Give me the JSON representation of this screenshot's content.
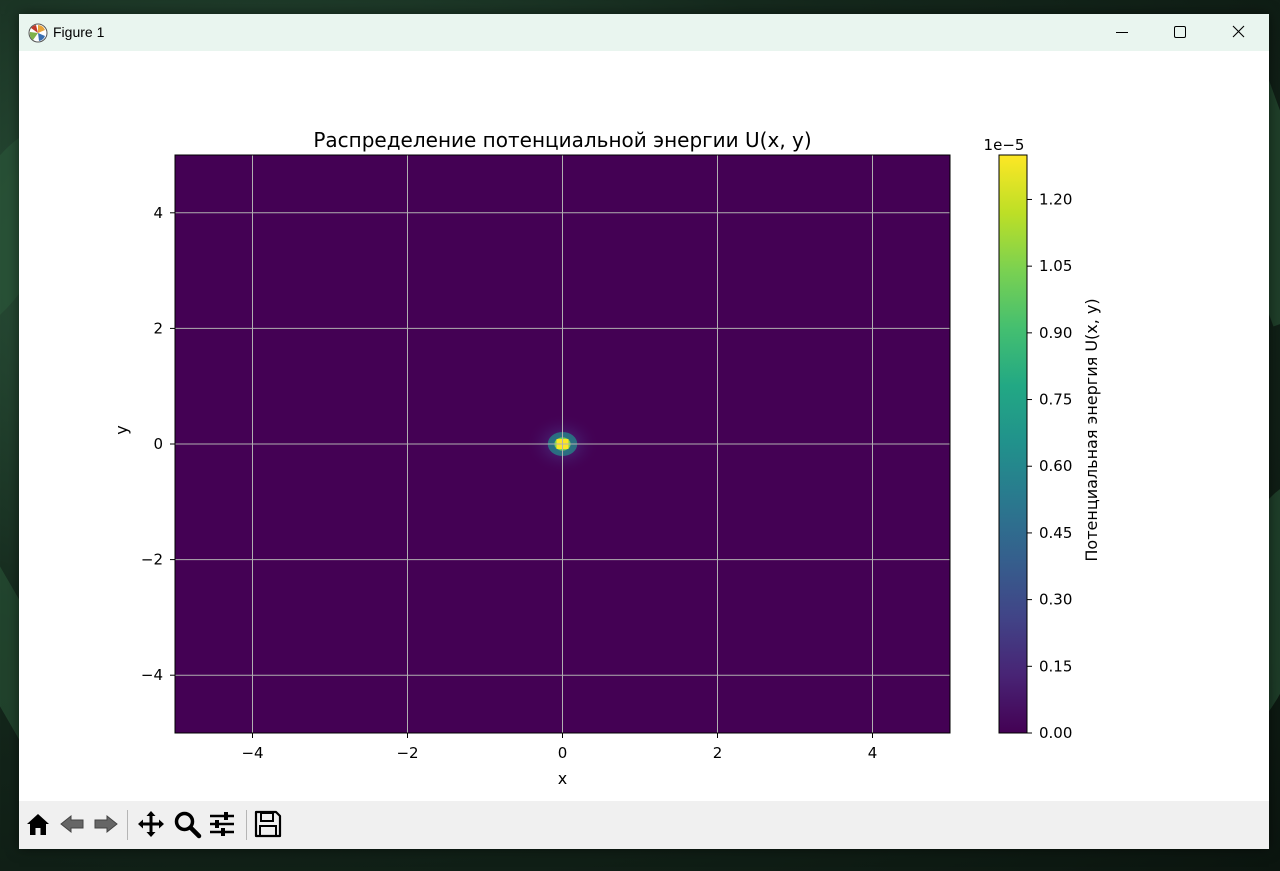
{
  "window": {
    "title": "Figure 1",
    "controls": [
      "minimize-icon",
      "maximize-icon",
      "close-icon"
    ]
  },
  "toolbar": {
    "tools": [
      "home-icon",
      "back-arrow-icon",
      "forward-arrow-icon",
      "pan-move-icon",
      "zoom-magnifier-icon",
      "configure-subplots-icon",
      "save-floppy-icon"
    ]
  },
  "chart_data": {
    "type": "heatmap",
    "title": "Распределение потенциальной энергии U(x, y)",
    "xlabel": "x",
    "ylabel": "y",
    "xlim": [
      -5,
      5
    ],
    "ylim": [
      -5,
      5
    ],
    "x_ticks": [
      -4,
      -2,
      0,
      2,
      4
    ],
    "y_ticks": [
      -4,
      -2,
      0,
      2,
      4
    ],
    "x_tick_labels": [
      "−4",
      "−2",
      "0",
      "2",
      "4"
    ],
    "y_tick_labels": [
      "−4",
      "−2",
      "0",
      "2",
      "4"
    ],
    "grid": true,
    "colormap": "viridis",
    "peak": {
      "x": 0,
      "y": 0,
      "value": 1.3e-05
    },
    "colorbar": {
      "label": "Потенциальная энергия U(x, y)",
      "offset_text": "1e−5",
      "range": [
        0,
        1.3
      ],
      "ticks": [
        0.0,
        0.15,
        0.3,
        0.45,
        0.6,
        0.75,
        0.9,
        1.05,
        1.2
      ],
      "tick_labels": [
        "0.00",
        "0.15",
        "0.30",
        "0.45",
        "0.60",
        "0.75",
        "0.90",
        "1.05",
        "1.20"
      ]
    },
    "colors": {
      "background": "#440154",
      "grid": "#b0b0b0",
      "peak": "#fde725"
    }
  }
}
